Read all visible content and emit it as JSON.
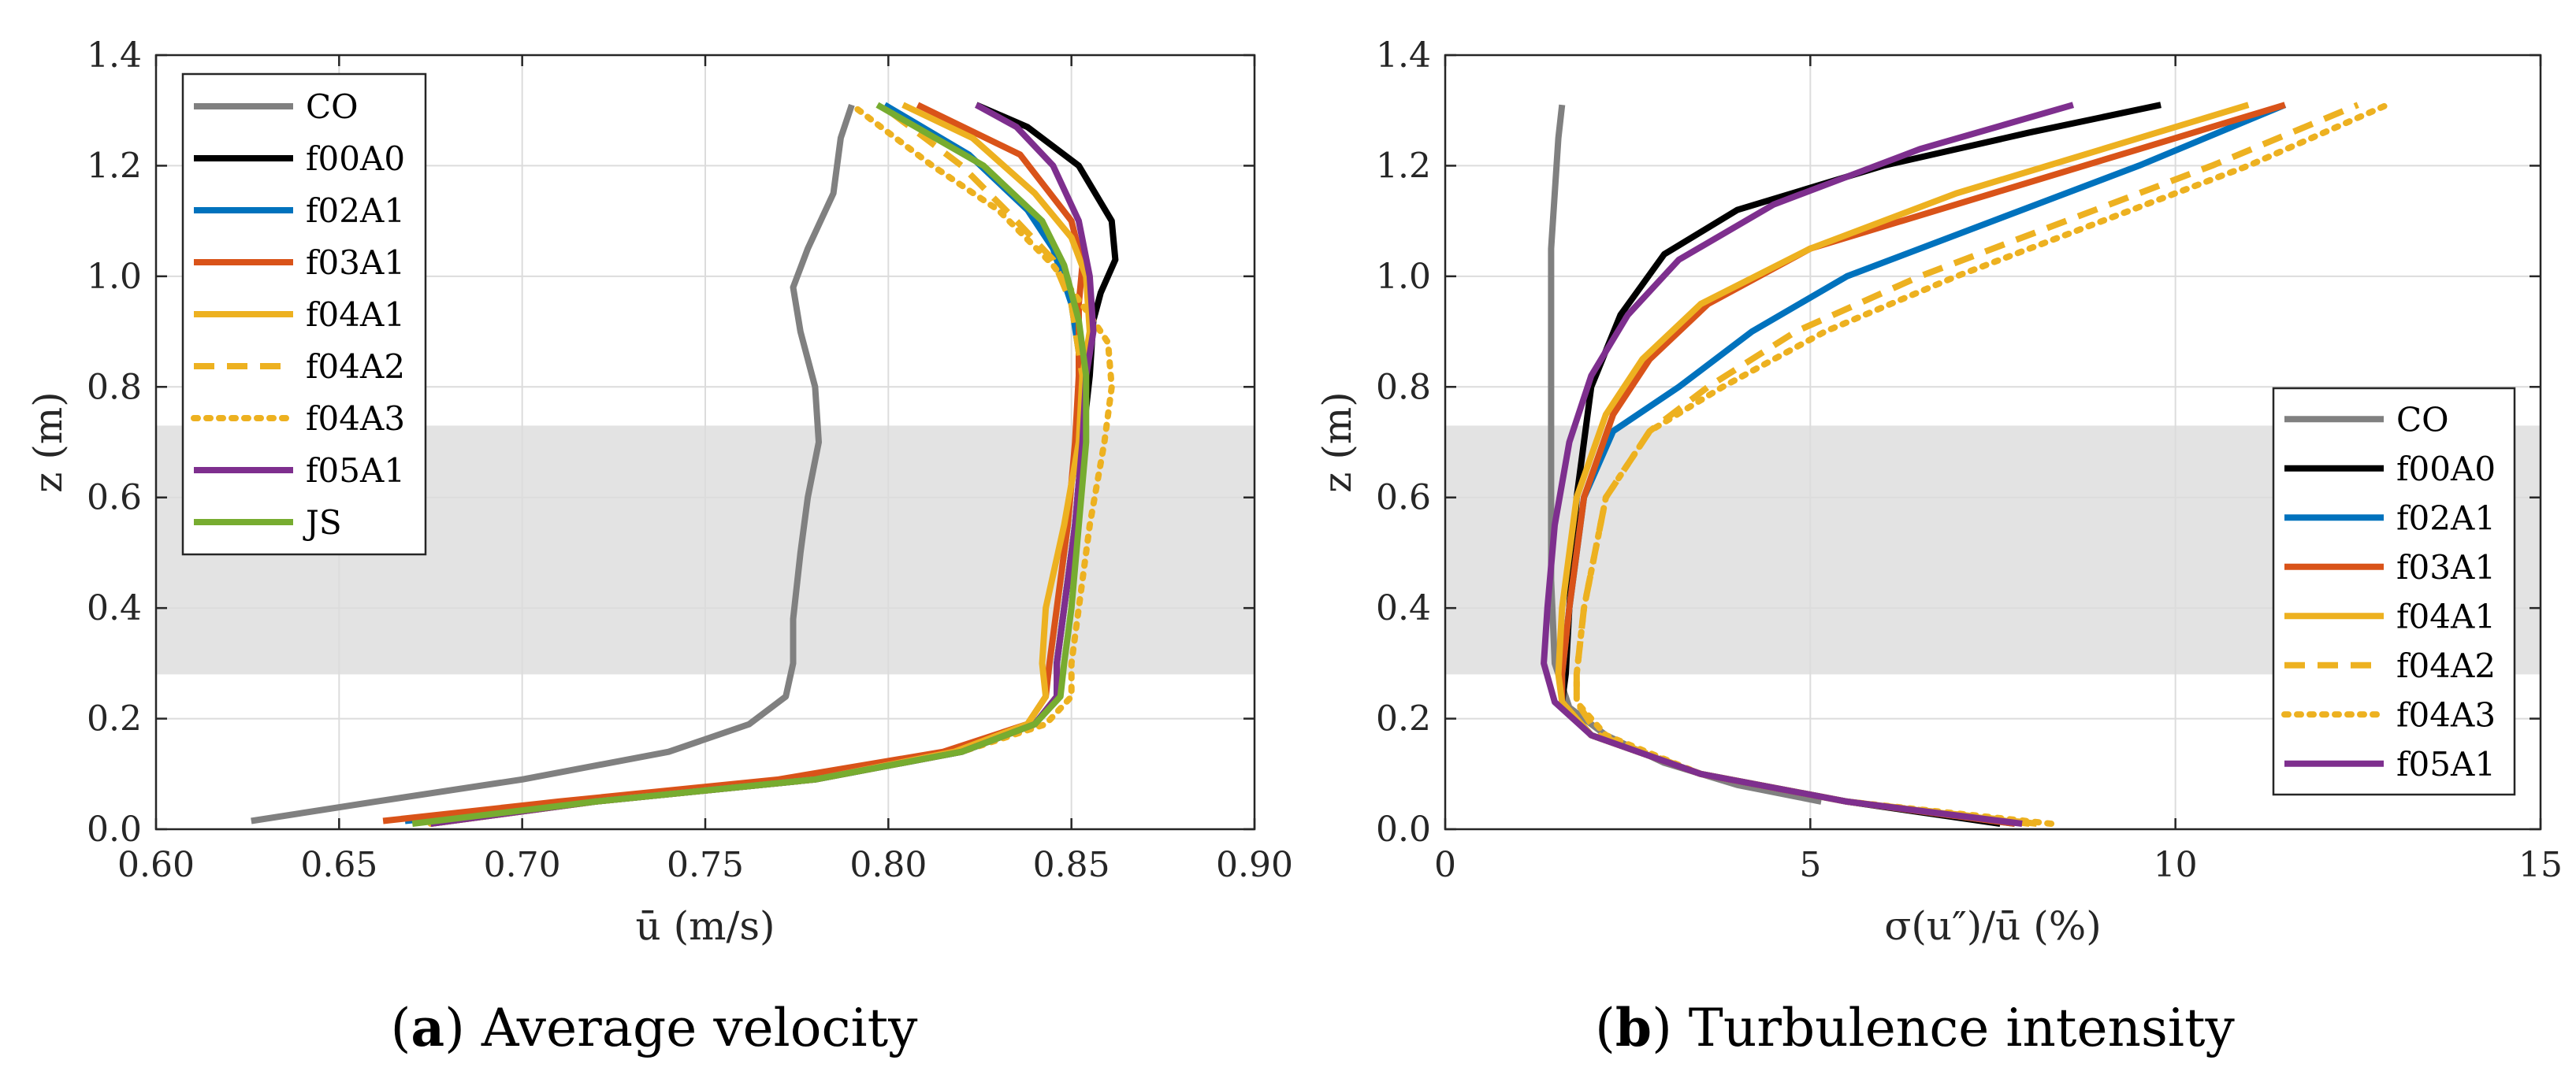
{
  "colors": {
    "CO": "#808080",
    "f00A0": "#000000",
    "f02A1": "#0072BD",
    "f03A1": "#D95319",
    "f04A1": "#EDB120",
    "f04A2": "#EDB120",
    "f04A3": "#EDB120",
    "f05A1": "#7E2F8E",
    "JS": "#77AC30",
    "band": "#e3e3e3",
    "grid": "#dcdcdc",
    "axis": "#262626"
  },
  "chart_data": [
    {
      "type": "line",
      "panel": "a",
      "caption_letter": "a",
      "caption_rest": "Average velocity",
      "xlabel": "ū (m/s)",
      "ylabel": "z (m)",
      "xlim": [
        0.6,
        0.9
      ],
      "ylim": [
        0.0,
        1.4
      ],
      "xticks": [
        "0.60",
        "0.65",
        "0.70",
        "0.75",
        "0.80",
        "0.85",
        "0.90"
      ],
      "yticks": [
        "0.0",
        "0.2",
        "0.4",
        "0.6",
        "0.8",
        "1.0",
        "1.2",
        "1.4"
      ],
      "shaded_band_z": [
        0.28,
        0.73
      ],
      "legend_position": "top-left",
      "series": [
        {
          "name": "CO",
          "key": "CO",
          "dash": "solid",
          "x": [
            0.626,
            0.66,
            0.7,
            0.74,
            0.762,
            0.772,
            0.774,
            0.774,
            0.776,
            0.778,
            0.781,
            0.78,
            0.776,
            0.774,
            0.778,
            0.785,
            0.787,
            0.79
          ],
          "y": [
            0.015,
            0.05,
            0.09,
            0.14,
            0.19,
            0.24,
            0.3,
            0.38,
            0.5,
            0.6,
            0.7,
            0.8,
            0.9,
            0.98,
            1.05,
            1.15,
            1.25,
            1.31
          ]
        },
        {
          "name": "f00A0",
          "key": "f00A0",
          "dash": "solid",
          "x": [
            0.675,
            0.72,
            0.78,
            0.82,
            0.84,
            0.846,
            0.846,
            0.848,
            0.851,
            0.853,
            0.855,
            0.856,
            0.858,
            0.862,
            0.861,
            0.852,
            0.838,
            0.824
          ],
          "y": [
            0.01,
            0.05,
            0.09,
            0.14,
            0.19,
            0.24,
            0.3,
            0.4,
            0.55,
            0.7,
            0.82,
            0.92,
            0.97,
            1.03,
            1.1,
            1.2,
            1.27,
            1.31
          ]
        },
        {
          "name": "f02A1",
          "key": "f02A1",
          "dash": "solid",
          "x": [
            0.668,
            0.72,
            0.78,
            0.82,
            0.84,
            0.846,
            0.846,
            0.848,
            0.851,
            0.853,
            0.853,
            0.85,
            0.845,
            0.838,
            0.822,
            0.799
          ],
          "y": [
            0.015,
            0.05,
            0.09,
            0.14,
            0.19,
            0.24,
            0.3,
            0.4,
            0.55,
            0.7,
            0.82,
            0.95,
            1.05,
            1.12,
            1.22,
            1.31
          ]
        },
        {
          "name": "f03A1",
          "key": "f03A1",
          "dash": "solid",
          "x": [
            0.662,
            0.71,
            0.77,
            0.815,
            0.838,
            0.843,
            0.844,
            0.846,
            0.849,
            0.851,
            0.852,
            0.852,
            0.853,
            0.85,
            0.836,
            0.808
          ],
          "y": [
            0.015,
            0.05,
            0.09,
            0.14,
            0.19,
            0.24,
            0.3,
            0.4,
            0.55,
            0.7,
            0.82,
            0.95,
            1.02,
            1.1,
            1.22,
            1.31
          ]
        },
        {
          "name": "f04A1",
          "key": "f04A1",
          "dash": "solid",
          "x": [
            0.675,
            0.72,
            0.78,
            0.818,
            0.838,
            0.843,
            0.842,
            0.843,
            0.848,
            0.852,
            0.853,
            0.855,
            0.854,
            0.85,
            0.84,
            0.823,
            0.804
          ],
          "y": [
            0.01,
            0.05,
            0.09,
            0.14,
            0.19,
            0.24,
            0.3,
            0.4,
            0.55,
            0.7,
            0.82,
            0.9,
            1.0,
            1.07,
            1.15,
            1.25,
            1.31
          ]
        },
        {
          "name": "f04A2",
          "key": "f04A2",
          "dash": "dashed",
          "x": [
            0.675,
            0.72,
            0.78,
            0.82,
            0.84,
            0.846,
            0.846,
            0.848,
            0.851,
            0.853,
            0.853,
            0.85,
            0.845,
            0.835,
            0.82,
            0.8
          ],
          "y": [
            0.01,
            0.05,
            0.09,
            0.14,
            0.19,
            0.24,
            0.3,
            0.4,
            0.55,
            0.7,
            0.82,
            0.95,
            1.03,
            1.1,
            1.2,
            1.3
          ]
        },
        {
          "name": "f04A3",
          "key": "f04A3",
          "dash": "dotted",
          "x": [
            0.675,
            0.72,
            0.78,
            0.82,
            0.843,
            0.85,
            0.85,
            0.852,
            0.855,
            0.859,
            0.861,
            0.86,
            0.855,
            0.845,
            0.83,
            0.812,
            0.8,
            0.79
          ],
          "y": [
            0.01,
            0.05,
            0.09,
            0.14,
            0.19,
            0.24,
            0.3,
            0.4,
            0.55,
            0.7,
            0.8,
            0.88,
            0.93,
            1.02,
            1.12,
            1.2,
            1.26,
            1.31
          ]
        },
        {
          "name": "f05A1",
          "key": "f05A1",
          "dash": "solid",
          "x": [
            0.675,
            0.72,
            0.78,
            0.82,
            0.84,
            0.846,
            0.846,
            0.848,
            0.851,
            0.853,
            0.854,
            0.856,
            0.855,
            0.852,
            0.845,
            0.835,
            0.824
          ],
          "y": [
            0.01,
            0.05,
            0.09,
            0.14,
            0.19,
            0.24,
            0.3,
            0.4,
            0.55,
            0.7,
            0.82,
            0.9,
            1.0,
            1.1,
            1.2,
            1.27,
            1.31
          ]
        },
        {
          "name": "JS",
          "key": "JS",
          "dash": "solid",
          "x": [
            0.67,
            0.72,
            0.78,
            0.82,
            0.84,
            0.847,
            0.848,
            0.85,
            0.852,
            0.854,
            0.854,
            0.852,
            0.848,
            0.842,
            0.826,
            0.797
          ],
          "y": [
            0.01,
            0.05,
            0.09,
            0.14,
            0.19,
            0.24,
            0.3,
            0.4,
            0.55,
            0.7,
            0.82,
            0.92,
            1.02,
            1.1,
            1.2,
            1.31
          ]
        }
      ]
    },
    {
      "type": "line",
      "panel": "b",
      "caption_letter": "b",
      "caption_rest": "Turbulence intensity",
      "xlabel": "σ(u″)/ū (%)",
      "ylabel": "z (m)",
      "xlim": [
        0,
        15
      ],
      "ylim": [
        0.0,
        1.4
      ],
      "xticks": [
        "0",
        "5",
        "10",
        "15"
      ],
      "yticks": [
        "0.0",
        "0.2",
        "0.4",
        "0.6",
        "0.8",
        "1.0",
        "1.2",
        "1.4"
      ],
      "shaded_band_z": [
        0.28,
        0.73
      ],
      "legend_position": "bottom-right",
      "series": [
        {
          "name": "CO",
          "key": "CO",
          "dash": "solid",
          "x": [
            5.15,
            4.0,
            3.0,
            2.2,
            1.7,
            1.5,
            1.45,
            1.45,
            1.45,
            1.45,
            1.45,
            1.5,
            1.55,
            1.6
          ],
          "y": [
            0.05,
            0.08,
            0.12,
            0.17,
            0.22,
            0.3,
            0.45,
            0.6,
            0.8,
            0.95,
            1.05,
            1.15,
            1.25,
            1.31
          ]
        },
        {
          "name": "f00A0",
          "key": "f00A0",
          "dash": "solid",
          "x": [
            7.6,
            5.5,
            3.5,
            2.0,
            1.6,
            1.65,
            1.7,
            1.8,
            2.0,
            2.4,
            3.0,
            4.0,
            6.0,
            8.0,
            9.8
          ],
          "y": [
            0.01,
            0.05,
            0.1,
            0.17,
            0.23,
            0.28,
            0.4,
            0.6,
            0.8,
            0.93,
            1.04,
            1.12,
            1.2,
            1.26,
            1.31
          ]
        },
        {
          "name": "f02A1",
          "key": "f02A1",
          "dash": "solid",
          "x": [
            7.8,
            5.5,
            3.5,
            2.0,
            1.6,
            1.6,
            1.7,
            1.9,
            2.3,
            3.2,
            4.2,
            5.5,
            7.5,
            9.5,
            11.5
          ],
          "y": [
            0.01,
            0.05,
            0.1,
            0.17,
            0.23,
            0.28,
            0.4,
            0.6,
            0.72,
            0.8,
            0.9,
            1.0,
            1.1,
            1.2,
            1.31
          ]
        },
        {
          "name": "f03A1",
          "key": "f03A1",
          "dash": "solid",
          "x": [
            7.8,
            5.5,
            3.5,
            2.0,
            1.6,
            1.6,
            1.7,
            1.9,
            2.3,
            2.8,
            3.6,
            5.0,
            7.5,
            9.5,
            11.5
          ],
          "y": [
            0.01,
            0.05,
            0.1,
            0.17,
            0.23,
            0.28,
            0.4,
            0.6,
            0.75,
            0.85,
            0.95,
            1.05,
            1.15,
            1.23,
            1.31
          ]
        },
        {
          "name": "f04A1",
          "key": "f04A1",
          "dash": "solid",
          "x": [
            8.0,
            5.5,
            3.5,
            2.0,
            1.6,
            1.55,
            1.6,
            1.8,
            2.2,
            2.7,
            3.5,
            5.0,
            7.0,
            9.0,
            11.0
          ],
          "y": [
            0.01,
            0.05,
            0.1,
            0.17,
            0.23,
            0.28,
            0.4,
            0.6,
            0.75,
            0.85,
            0.95,
            1.05,
            1.15,
            1.23,
            1.31
          ]
        },
        {
          "name": "f04A2",
          "key": "f04A2",
          "dash": "dashed",
          "x": [
            8.1,
            5.5,
            3.5,
            2.1,
            1.8,
            1.8,
            1.9,
            2.2,
            2.8,
            3.6,
            4.8,
            6.5,
            8.5,
            10.5,
            12.5
          ],
          "y": [
            0.01,
            0.05,
            0.1,
            0.17,
            0.23,
            0.28,
            0.4,
            0.6,
            0.72,
            0.8,
            0.9,
            1.0,
            1.1,
            1.2,
            1.31
          ]
        },
        {
          "name": "f04A3",
          "key": "f04A3",
          "dash": "dotted",
          "x": [
            8.3,
            5.5,
            3.5,
            2.2,
            1.8,
            1.8,
            1.9,
            2.2,
            2.8,
            3.8,
            5.2,
            7.0,
            9.0,
            11.0,
            12.9
          ],
          "y": [
            0.01,
            0.05,
            0.1,
            0.17,
            0.23,
            0.28,
            0.4,
            0.6,
            0.72,
            0.8,
            0.9,
            1.0,
            1.1,
            1.2,
            1.31
          ]
        },
        {
          "name": "f05A1",
          "key": "f05A1",
          "dash": "solid",
          "x": [
            7.9,
            5.5,
            3.5,
            2.0,
            1.5,
            1.35,
            1.4,
            1.5,
            1.7,
            2.0,
            2.5,
            3.2,
            4.5,
            6.5,
            8.6
          ],
          "y": [
            0.01,
            0.05,
            0.1,
            0.17,
            0.23,
            0.3,
            0.4,
            0.55,
            0.7,
            0.82,
            0.93,
            1.03,
            1.13,
            1.23,
            1.31
          ]
        }
      ]
    }
  ]
}
